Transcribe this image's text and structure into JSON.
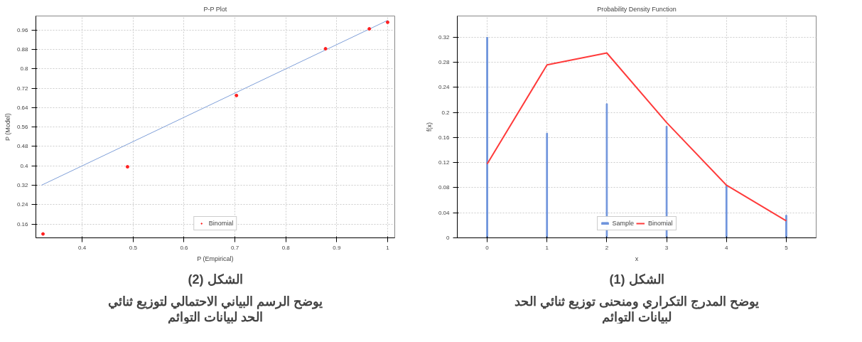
{
  "chart_data": [
    {
      "type": "bar",
      "title": "Probability Density Function",
      "xlabel": "x",
      "ylabel": "f(x)",
      "x": [
        0,
        1,
        2,
        3,
        4,
        5
      ],
      "series": [
        {
          "name": "Sample",
          "color": "#6f94dc",
          "values": [
            0.32,
            0.167,
            0.214,
            0.178,
            0.084,
            0.036
          ]
        },
        {
          "name": "Binomial",
          "type": "line",
          "color": "#ff3b3b",
          "values": [
            0.118,
            0.276,
            0.295,
            0.184,
            0.084,
            0.027
          ]
        }
      ],
      "xlim": [
        -0.5,
        5.5
      ],
      "ylim": [
        0,
        0.354
      ],
      "xticks": [
        0,
        1,
        2,
        3,
        4,
        5
      ],
      "yticks": [
        0,
        0.04,
        0.08,
        0.12,
        0.16,
        0.2,
        0.24,
        0.28,
        0.32
      ],
      "grid": true,
      "legend": "bottom",
      "line_style": "solid",
      "annotations": [
        "الشكل (1)",
        "يوضح المدرج التكراري ومنحنى توزيع ثنائي الحد لبيانات التوائم"
      ]
    },
    {
      "type": "scatter",
      "title": "P-P Plot",
      "xlabel": "P (Empirical)",
      "ylabel": "P (Model)",
      "series": [
        {
          "type": "line",
          "color": "#7f9fd8",
          "x": [
            0.32,
            1.0
          ],
          "values": [
            0.32,
            1.0
          ]
        },
        {
          "name": "Binomial",
          "marker": "circle",
          "color": "#ff2020",
          "x": [
            0.323,
            0.489,
            0.703,
            0.878,
            0.964,
            1.0
          ],
          "values": [
            0.119,
            0.396,
            0.69,
            0.883,
            0.965,
            0.992
          ]
        }
      ],
      "xlim": [
        0.309,
        1.014
      ],
      "ylim": [
        0.103,
        1.018
      ],
      "xticks": [
        0.4,
        0.5,
        0.6,
        0.7,
        0.8,
        0.9,
        1
      ],
      "yticks": [
        0.16,
        0.24,
        0.32,
        0.4,
        0.48,
        0.56,
        0.64,
        0.72,
        0.8,
        0.88,
        0.96
      ],
      "grid": true,
      "legend": "bottom",
      "annotations": [
        "الشكل (2)",
        "يوضح الرسم البياني الاحتمالي لتوزيع ثنائي الحد لبيانات التوائم"
      ]
    }
  ]
}
